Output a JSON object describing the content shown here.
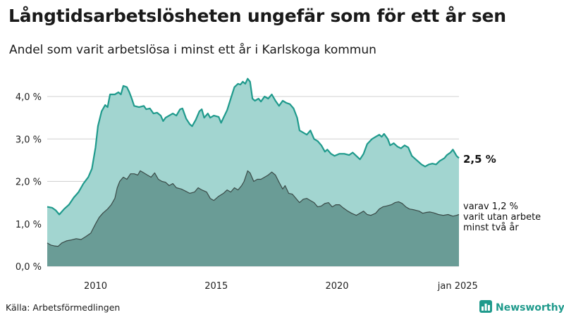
{
  "title": "Långtidsarbetslösheten ungefär som för ett år sen",
  "subtitle": "Andel som varit arbetslösa i minst ett år i Karlskoga kommun",
  "source": "Källa: Arbetsförmedlingen",
  "brand": {
    "name": "Newsworthy",
    "icon": "newsworthy-logo-icon",
    "color": "#1f9a8c"
  },
  "colors": {
    "total_fill": "#a2d5d0",
    "total_line": "#1f9a8c",
    "long_fill": "#6a9c96",
    "long_line": "#3a4a47",
    "grid": "#d0d0d0"
  },
  "chart_data": {
    "type": "area",
    "x_unit": "decimal year",
    "xlim": [
      2008.0,
      2025.05
    ],
    "ylim": [
      0,
      4.0
    ],
    "y_ticks": [
      0,
      1,
      2,
      3,
      4
    ],
    "y_tick_labels": [
      "0,0 %",
      "1,0 %",
      "2,0 %",
      "3,0 %",
      "4,0 %"
    ],
    "x_ticks": [
      2010,
      2015,
      2020,
      2025
    ],
    "x_tick_labels": [
      "2010",
      "2015",
      "2020",
      "jan 2025"
    ],
    "grid": true,
    "series": [
      {
        "label_lines": [
          "2,5 %"
        ],
        "points": [
          [
            2008.0,
            1.4
          ],
          [
            2008.2,
            1.38
          ],
          [
            2008.35,
            1.32
          ],
          [
            2008.5,
            1.22
          ],
          [
            2008.7,
            1.35
          ],
          [
            2008.9,
            1.45
          ],
          [
            2009.1,
            1.62
          ],
          [
            2009.3,
            1.75
          ],
          [
            2009.5,
            1.95
          ],
          [
            2009.7,
            2.1
          ],
          [
            2009.85,
            2.3
          ],
          [
            2010.0,
            2.8
          ],
          [
            2010.1,
            3.3
          ],
          [
            2010.25,
            3.65
          ],
          [
            2010.4,
            3.8
          ],
          [
            2010.5,
            3.75
          ],
          [
            2010.6,
            4.05
          ],
          [
            2010.8,
            4.05
          ],
          [
            2010.95,
            4.1
          ],
          [
            2011.05,
            4.05
          ],
          [
            2011.15,
            4.25
          ],
          [
            2011.3,
            4.22
          ],
          [
            2011.4,
            4.1
          ],
          [
            2011.5,
            3.95
          ],
          [
            2011.6,
            3.78
          ],
          [
            2011.8,
            3.75
          ],
          [
            2012.0,
            3.78
          ],
          [
            2012.1,
            3.7
          ],
          [
            2012.25,
            3.72
          ],
          [
            2012.4,
            3.6
          ],
          [
            2012.55,
            3.62
          ],
          [
            2012.7,
            3.55
          ],
          [
            2012.8,
            3.42
          ],
          [
            2012.9,
            3.5
          ],
          [
            2013.05,
            3.55
          ],
          [
            2013.2,
            3.6
          ],
          [
            2013.35,
            3.55
          ],
          [
            2013.5,
            3.7
          ],
          [
            2013.6,
            3.72
          ],
          [
            2013.75,
            3.48
          ],
          [
            2013.9,
            3.35
          ],
          [
            2014.0,
            3.3
          ],
          [
            2014.15,
            3.45
          ],
          [
            2014.3,
            3.65
          ],
          [
            2014.4,
            3.7
          ],
          [
            2014.5,
            3.5
          ],
          [
            2014.65,
            3.6
          ],
          [
            2014.75,
            3.5
          ],
          [
            2014.9,
            3.55
          ],
          [
            2015.1,
            3.52
          ],
          [
            2015.2,
            3.38
          ],
          [
            2015.3,
            3.5
          ],
          [
            2015.45,
            3.68
          ],
          [
            2015.6,
            3.95
          ],
          [
            2015.75,
            4.22
          ],
          [
            2015.9,
            4.3
          ],
          [
            2016.0,
            4.28
          ],
          [
            2016.1,
            4.35
          ],
          [
            2016.2,
            4.3
          ],
          [
            2016.3,
            4.42
          ],
          [
            2016.4,
            4.35
          ],
          [
            2016.5,
            3.95
          ],
          [
            2016.6,
            3.9
          ],
          [
            2016.75,
            3.95
          ],
          [
            2016.85,
            3.88
          ],
          [
            2017.0,
            4.0
          ],
          [
            2017.15,
            3.95
          ],
          [
            2017.3,
            4.05
          ],
          [
            2017.45,
            3.9
          ],
          [
            2017.6,
            3.78
          ],
          [
            2017.75,
            3.9
          ],
          [
            2017.9,
            3.85
          ],
          [
            2018.05,
            3.82
          ],
          [
            2018.2,
            3.72
          ],
          [
            2018.35,
            3.5
          ],
          [
            2018.45,
            3.2
          ],
          [
            2018.6,
            3.15
          ],
          [
            2018.75,
            3.1
          ],
          [
            2018.9,
            3.2
          ],
          [
            2019.05,
            3.0
          ],
          [
            2019.2,
            2.95
          ],
          [
            2019.35,
            2.85
          ],
          [
            2019.5,
            2.7
          ],
          [
            2019.6,
            2.75
          ],
          [
            2019.75,
            2.65
          ],
          [
            2019.9,
            2.6
          ],
          [
            2020.1,
            2.65
          ],
          [
            2020.3,
            2.65
          ],
          [
            2020.5,
            2.62
          ],
          [
            2020.65,
            2.68
          ],
          [
            2020.8,
            2.6
          ],
          [
            2020.95,
            2.52
          ],
          [
            2021.1,
            2.65
          ],
          [
            2021.25,
            2.88
          ],
          [
            2021.45,
            3.0
          ],
          [
            2021.6,
            3.05
          ],
          [
            2021.75,
            3.1
          ],
          [
            2021.85,
            3.05
          ],
          [
            2021.95,
            3.12
          ],
          [
            2022.1,
            3.0
          ],
          [
            2022.2,
            2.85
          ],
          [
            2022.35,
            2.9
          ],
          [
            2022.5,
            2.82
          ],
          [
            2022.65,
            2.78
          ],
          [
            2022.8,
            2.85
          ],
          [
            2022.95,
            2.8
          ],
          [
            2023.1,
            2.6
          ],
          [
            2023.3,
            2.5
          ],
          [
            2023.5,
            2.4
          ],
          [
            2023.65,
            2.35
          ],
          [
            2023.8,
            2.4
          ],
          [
            2023.95,
            2.42
          ],
          [
            2024.1,
            2.4
          ],
          [
            2024.25,
            2.48
          ],
          [
            2024.45,
            2.55
          ],
          [
            2024.55,
            2.62
          ],
          [
            2024.7,
            2.68
          ],
          [
            2024.8,
            2.75
          ],
          [
            2024.95,
            2.6
          ],
          [
            2025.05,
            2.55
          ]
        ]
      },
      {
        "label_lines": [
          "varav 1,2 %",
          "varit utan arbete",
          "minst två år"
        ],
        "points": [
          [
            2008.0,
            0.55
          ],
          [
            2008.15,
            0.5
          ],
          [
            2008.3,
            0.48
          ],
          [
            2008.45,
            0.47
          ],
          [
            2008.6,
            0.55
          ],
          [
            2008.8,
            0.6
          ],
          [
            2009.0,
            0.62
          ],
          [
            2009.2,
            0.65
          ],
          [
            2009.4,
            0.63
          ],
          [
            2009.6,
            0.7
          ],
          [
            2009.8,
            0.78
          ],
          [
            2010.0,
            1.0
          ],
          [
            2010.15,
            1.15
          ],
          [
            2010.3,
            1.25
          ],
          [
            2010.5,
            1.35
          ],
          [
            2010.65,
            1.45
          ],
          [
            2010.8,
            1.6
          ],
          [
            2010.9,
            1.85
          ],
          [
            2011.0,
            2.0
          ],
          [
            2011.15,
            2.1
          ],
          [
            2011.3,
            2.05
          ],
          [
            2011.45,
            2.18
          ],
          [
            2011.6,
            2.18
          ],
          [
            2011.75,
            2.15
          ],
          [
            2011.85,
            2.25
          ],
          [
            2012.0,
            2.2
          ],
          [
            2012.15,
            2.15
          ],
          [
            2012.3,
            2.1
          ],
          [
            2012.45,
            2.2
          ],
          [
            2012.6,
            2.05
          ],
          [
            2012.75,
            2.0
          ],
          [
            2012.9,
            1.98
          ],
          [
            2013.05,
            1.9
          ],
          [
            2013.2,
            1.95
          ],
          [
            2013.35,
            1.85
          ],
          [
            2013.55,
            1.82
          ],
          [
            2013.7,
            1.78
          ],
          [
            2013.9,
            1.72
          ],
          [
            2014.1,
            1.75
          ],
          [
            2014.25,
            1.85
          ],
          [
            2014.4,
            1.8
          ],
          [
            2014.6,
            1.75
          ],
          [
            2014.75,
            1.6
          ],
          [
            2014.9,
            1.55
          ],
          [
            2015.1,
            1.65
          ],
          [
            2015.3,
            1.72
          ],
          [
            2015.45,
            1.8
          ],
          [
            2015.6,
            1.75
          ],
          [
            2015.75,
            1.85
          ],
          [
            2015.9,
            1.8
          ],
          [
            2016.05,
            1.9
          ],
          [
            2016.15,
            2.0
          ],
          [
            2016.3,
            2.25
          ],
          [
            2016.4,
            2.2
          ],
          [
            2016.55,
            2.0
          ],
          [
            2016.7,
            2.05
          ],
          [
            2016.85,
            2.05
          ],
          [
            2017.0,
            2.1
          ],
          [
            2017.15,
            2.15
          ],
          [
            2017.3,
            2.22
          ],
          [
            2017.45,
            2.15
          ],
          [
            2017.6,
            1.98
          ],
          [
            2017.75,
            1.82
          ],
          [
            2017.85,
            1.9
          ],
          [
            2018.0,
            1.72
          ],
          [
            2018.15,
            1.7
          ],
          [
            2018.3,
            1.6
          ],
          [
            2018.45,
            1.5
          ],
          [
            2018.6,
            1.58
          ],
          [
            2018.75,
            1.6
          ],
          [
            2018.9,
            1.55
          ],
          [
            2019.05,
            1.5
          ],
          [
            2019.2,
            1.4
          ],
          [
            2019.35,
            1.42
          ],
          [
            2019.5,
            1.48
          ],
          [
            2019.65,
            1.5
          ],
          [
            2019.8,
            1.4
          ],
          [
            2019.95,
            1.45
          ],
          [
            2020.1,
            1.45
          ],
          [
            2020.25,
            1.38
          ],
          [
            2020.45,
            1.3
          ],
          [
            2020.6,
            1.25
          ],
          [
            2020.8,
            1.2
          ],
          [
            2020.95,
            1.25
          ],
          [
            2021.1,
            1.3
          ],
          [
            2021.25,
            1.22
          ],
          [
            2021.4,
            1.2
          ],
          [
            2021.6,
            1.25
          ],
          [
            2021.75,
            1.35
          ],
          [
            2021.9,
            1.4
          ],
          [
            2022.05,
            1.42
          ],
          [
            2022.25,
            1.45
          ],
          [
            2022.4,
            1.5
          ],
          [
            2022.55,
            1.52
          ],
          [
            2022.7,
            1.48
          ],
          [
            2022.85,
            1.4
          ],
          [
            2023.0,
            1.35
          ],
          [
            2023.2,
            1.33
          ],
          [
            2023.4,
            1.3
          ],
          [
            2023.55,
            1.25
          ],
          [
            2023.7,
            1.27
          ],
          [
            2023.85,
            1.28
          ],
          [
            2024.0,
            1.26
          ],
          [
            2024.2,
            1.22
          ],
          [
            2024.4,
            1.2
          ],
          [
            2024.6,
            1.22
          ],
          [
            2024.8,
            1.18
          ],
          [
            2024.95,
            1.2
          ],
          [
            2025.05,
            1.22
          ]
        ]
      }
    ]
  }
}
